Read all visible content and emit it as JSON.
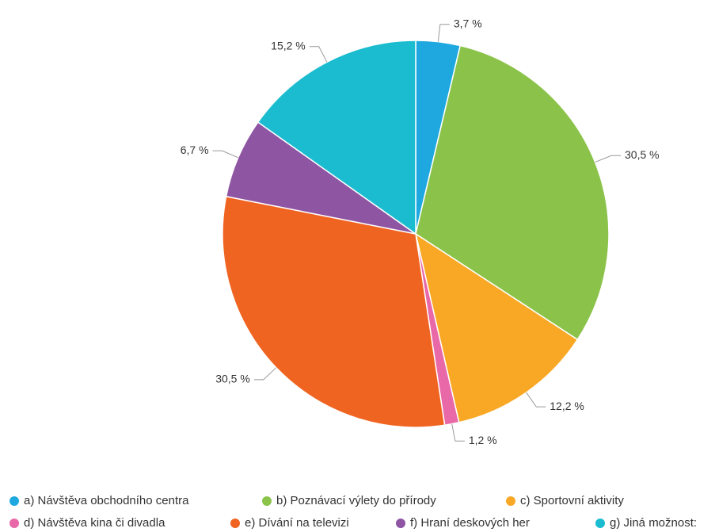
{
  "chart_data": {
    "type": "pie",
    "categories": [
      "a) Návštěva obchodního centra",
      "b) Poznávací výlety do přírody",
      "c) Sportovní aktivity",
      "d) Návštěva kina či divadla",
      "e) Dívání na televizi",
      "f) Hraní deskových her",
      "g) Jiná možnost:"
    ],
    "values": [
      3.7,
      30.5,
      12.2,
      1.2,
      30.5,
      6.7,
      15.2
    ],
    "value_labels": [
      "3,7 %",
      "30,5 %",
      "12,2 %",
      "1,2 %",
      "30,5 %",
      "6,7 %",
      "15,2 %"
    ],
    "colors": [
      "#1fa8e0",
      "#8bc34a",
      "#f9a825",
      "#e868a8",
      "#f06422",
      "#8e55a3",
      "#1bbccf"
    ],
    "legend": "bottom"
  }
}
